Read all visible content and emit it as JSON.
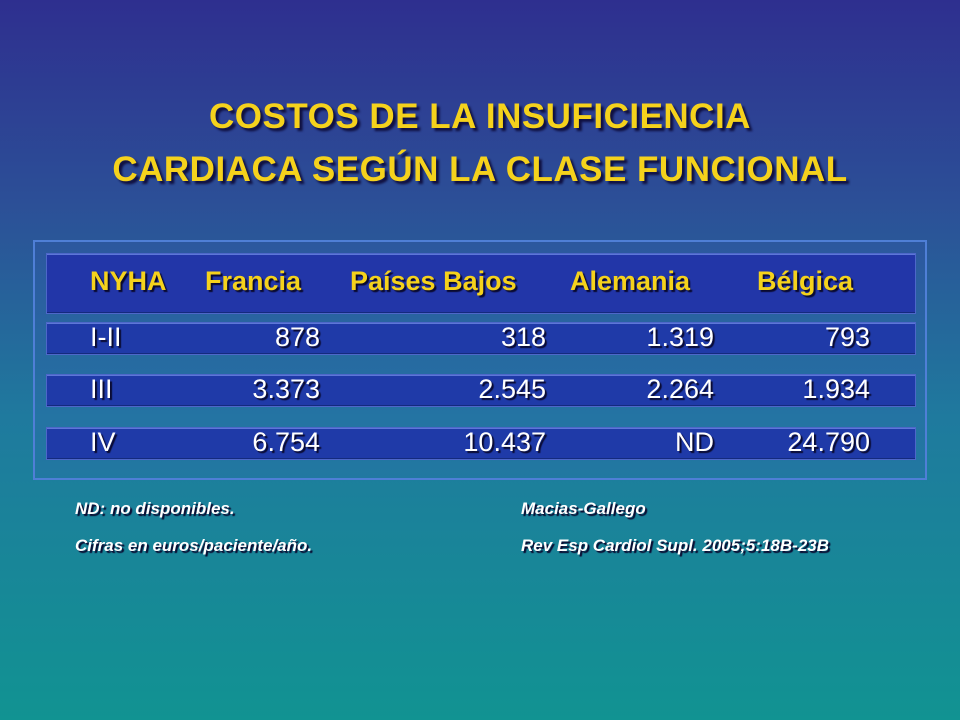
{
  "title": {
    "line1": "COSTOS DE LA INSUFICIENCIA",
    "line2": "CARDIACA SEGÚN LA CLASE FUNCIONAL"
  },
  "table": {
    "headers": [
      "NYHA",
      "Francia",
      "Países Bajos",
      "Alemania",
      "Bélgica"
    ],
    "rows": [
      [
        "I-II",
        "878",
        "318",
        "1.319",
        "793"
      ],
      [
        "III",
        "3.373",
        "2.545",
        "2.264",
        "1.934"
      ],
      [
        "IV",
        "6.754",
        "10.437",
        "ND",
        "24.790"
      ]
    ]
  },
  "notes": {
    "left1": "ND: no disponibles.",
    "left2": "Cifras en euros/paciente/año.",
    "right1": "Macias-Gallego",
    "right2": "Rev Esp Cardiol Supl. 2005;5:18B-23B"
  },
  "colors": {
    "title": "#f5d21c",
    "header_text": "#f5d21c",
    "body_text": "#ffffff",
    "band": "#1f3aa8",
    "frame_border": "#4f7fd6"
  }
}
